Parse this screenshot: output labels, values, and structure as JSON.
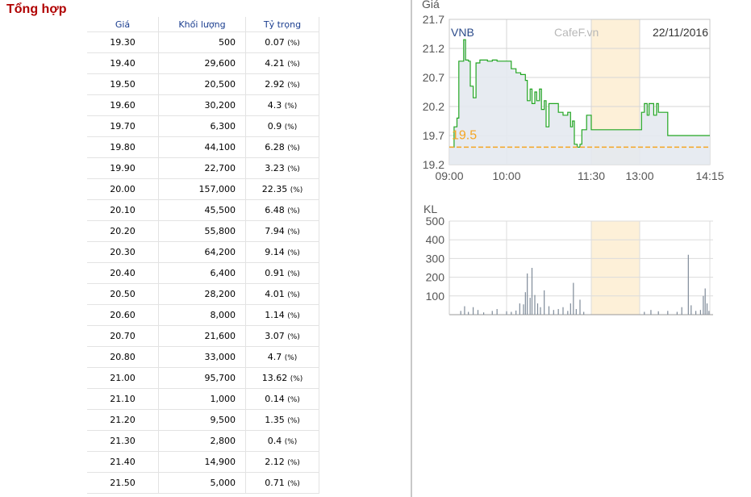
{
  "page_title": "Tổng hợp",
  "table": {
    "headers": [
      "Giá",
      "Khối lượng",
      "Tỷ trọng"
    ],
    "rows": [
      [
        "19.30",
        "500",
        "0.07",
        "(%)"
      ],
      [
        "19.40",
        "29,600",
        "4.21",
        "(%)"
      ],
      [
        "19.50",
        "20,500",
        "2.92",
        "(%)"
      ],
      [
        "19.60",
        "30,200",
        "4.3",
        "(%)"
      ],
      [
        "19.70",
        "6,300",
        "0.9",
        "(%)"
      ],
      [
        "19.80",
        "44,100",
        "6.28",
        "(%)"
      ],
      [
        "19.90",
        "22,700",
        "3.23",
        "(%)"
      ],
      [
        "20.00",
        "157,000",
        "22.35",
        "(%)"
      ],
      [
        "20.10",
        "45,500",
        "6.48",
        "(%)"
      ],
      [
        "20.20",
        "55,800",
        "7.94",
        "(%)"
      ],
      [
        "20.30",
        "64,200",
        "9.14",
        "(%)"
      ],
      [
        "20.40",
        "6,400",
        "0.91",
        "(%)"
      ],
      [
        "20.50",
        "28,200",
        "4.01",
        "(%)"
      ],
      [
        "20.60",
        "8,000",
        "1.14",
        "(%)"
      ],
      [
        "20.70",
        "21,600",
        "3.07",
        "(%)"
      ],
      [
        "20.80",
        "33,000",
        "4.7",
        "(%)"
      ],
      [
        "21.00",
        "95,700",
        "13.62",
        "(%)"
      ],
      [
        "21.10",
        "1,000",
        "0.14",
        "(%)"
      ],
      [
        "21.20",
        "9,500",
        "1.35",
        "(%)"
      ],
      [
        "21.30",
        "2,800",
        "0.4",
        "(%)"
      ],
      [
        "21.40",
        "14,900",
        "2.12",
        "(%)"
      ],
      [
        "21.50",
        "5,000",
        "0.71",
        "(%)"
      ]
    ]
  },
  "colors": {
    "title": "#b00000",
    "header_text": "#1a3d8f",
    "price_line": "#22a622",
    "reference_line": "#f5a623",
    "break_band": "#fdf0d8",
    "volume_bars": "#7f8b99"
  },
  "chart_data": [
    {
      "type": "line",
      "ylabel": "Giá",
      "symbol": "VNB",
      "watermark": "CafeF.vn",
      "date": "22/11/2016",
      "ylim": [
        19.2,
        21.7
      ],
      "y_ticks": [
        "21.7",
        "21.2",
        "20.7",
        "20.2",
        "19.7",
        "19.2"
      ],
      "x_ticks": [
        "09:00",
        "10:00",
        "11:30",
        "13:00",
        "14:15"
      ],
      "reference_price": "19.5",
      "break_band": [
        "11:30",
        "13:00"
      ],
      "x": [
        "09:00",
        "09:05",
        "09:08",
        "09:10",
        "09:12",
        "09:15",
        "09:17",
        "09:20",
        "09:22",
        "09:25",
        "09:28",
        "09:32",
        "09:35",
        "09:40",
        "09:45",
        "09:50",
        "10:00",
        "10:05",
        "10:10",
        "10:15",
        "10:20",
        "10:22",
        "10:25",
        "10:27",
        "10:30",
        "10:32",
        "10:35",
        "10:37",
        "10:40",
        "10:42",
        "10:45",
        "10:50",
        "10:55",
        "11:00",
        "11:05",
        "11:08",
        "11:10",
        "11:12",
        "11:15",
        "11:18",
        "11:20",
        "11:25",
        "11:30",
        "13:00",
        "13:02",
        "13:05",
        "13:08",
        "13:10",
        "13:12",
        "13:15",
        "13:18",
        "13:20",
        "13:25",
        "13:30",
        "14:15"
      ],
      "values": [
        19.5,
        19.85,
        20.0,
        20.98,
        20.98,
        21.35,
        21.0,
        20.98,
        20.55,
        20.35,
        20.95,
        21.0,
        21.0,
        20.98,
        21.0,
        20.98,
        20.98,
        20.85,
        20.78,
        20.75,
        20.65,
        20.3,
        20.5,
        20.25,
        20.45,
        20.3,
        20.5,
        20.15,
        20.3,
        19.85,
        20.25,
        20.25,
        20.1,
        20.05,
        20.1,
        19.85,
        19.95,
        19.55,
        19.5,
        19.55,
        19.8,
        20.05,
        19.8,
        19.8,
        20.1,
        20.25,
        20.05,
        20.25,
        20.25,
        20.05,
        20.25,
        20.1,
        20.1,
        19.7,
        19.7
      ]
    },
    {
      "type": "bar",
      "ylabel": "KL",
      "ylim": [
        0,
        500
      ],
      "y_ticks": [
        "500",
        "400",
        "300",
        "200",
        "100"
      ],
      "bars": [
        {
          "x": "09:12",
          "value": 20
        },
        {
          "x": "09:16",
          "value": 45
        },
        {
          "x": "09:20",
          "value": 15
        },
        {
          "x": "09:25",
          "value": 40
        },
        {
          "x": "09:30",
          "value": 25
        },
        {
          "x": "09:36",
          "value": 12
        },
        {
          "x": "09:45",
          "value": 20
        },
        {
          "x": "09:50",
          "value": 30
        },
        {
          "x": "10:00",
          "value": 18
        },
        {
          "x": "10:05",
          "value": 15
        },
        {
          "x": "10:10",
          "value": 22
        },
        {
          "x": "10:14",
          "value": 60
        },
        {
          "x": "10:18",
          "value": 55
        },
        {
          "x": "10:20",
          "value": 120
        },
        {
          "x": "10:22",
          "value": 220
        },
        {
          "x": "10:25",
          "value": 90
        },
        {
          "x": "10:27",
          "value": 250
        },
        {
          "x": "10:30",
          "value": 105
        },
        {
          "x": "10:33",
          "value": 60
        },
        {
          "x": "10:36",
          "value": 40
        },
        {
          "x": "10:40",
          "value": 130
        },
        {
          "x": "10:45",
          "value": 45
        },
        {
          "x": "10:50",
          "value": 25
        },
        {
          "x": "10:55",
          "value": 30
        },
        {
          "x": "11:00",
          "value": 40
        },
        {
          "x": "11:05",
          "value": 20
        },
        {
          "x": "11:08",
          "value": 60
        },
        {
          "x": "11:11",
          "value": 170
        },
        {
          "x": "11:14",
          "value": 30
        },
        {
          "x": "11:18",
          "value": 80
        },
        {
          "x": "11:22",
          "value": 15
        },
        {
          "x": "13:05",
          "value": 15
        },
        {
          "x": "13:12",
          "value": 25
        },
        {
          "x": "13:20",
          "value": 18
        },
        {
          "x": "13:30",
          "value": 20
        },
        {
          "x": "13:40",
          "value": 15
        },
        {
          "x": "13:45",
          "value": 40
        },
        {
          "x": "13:52",
          "value": 320
        },
        {
          "x": "13:55",
          "value": 50
        },
        {
          "x": "14:00",
          "value": 20
        },
        {
          "x": "14:05",
          "value": 25
        },
        {
          "x": "14:08",
          "value": 100
        },
        {
          "x": "14:10",
          "value": 140
        },
        {
          "x": "14:12",
          "value": 60
        },
        {
          "x": "14:14",
          "value": 20
        }
      ]
    }
  ]
}
